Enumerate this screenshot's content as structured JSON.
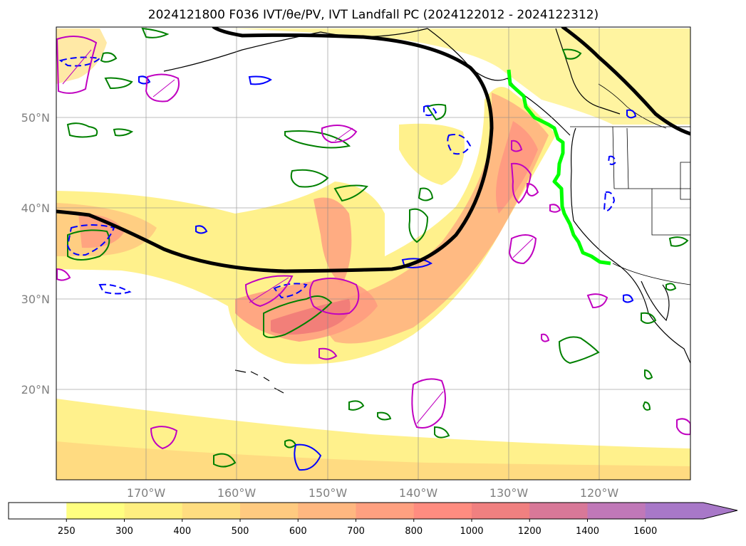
{
  "title": "2024121800 F036 IVT/θe/PV, IVT Landfall PC (2024122012 - 2024122312)",
  "map": {
    "lon_labels": [
      "170°W",
      "160°W",
      "150°W",
      "140°W",
      "130°W",
      "120°W"
    ],
    "lat_labels": [
      "50°N",
      "40°N",
      "30°N",
      "20°N"
    ],
    "lon_values": [
      -170,
      -160,
      -150,
      -140,
      -130,
      -120
    ],
    "lat_values": [
      50,
      40,
      30,
      20
    ]
  },
  "colorbar": {
    "levels": [
      "250",
      "300",
      "400",
      "500",
      "600",
      "700",
      "800",
      "1000",
      "1200",
      "1400",
      "1600"
    ],
    "colors": [
      "#ffffff",
      "#ffff80",
      "#ffef80",
      "#ffdd80",
      "#ffca80",
      "#ffb780",
      "#ffa080",
      "#ff8c80",
      "#f08080",
      "#d87898",
      "#c078b8",
      "#a878c8"
    ]
  }
}
